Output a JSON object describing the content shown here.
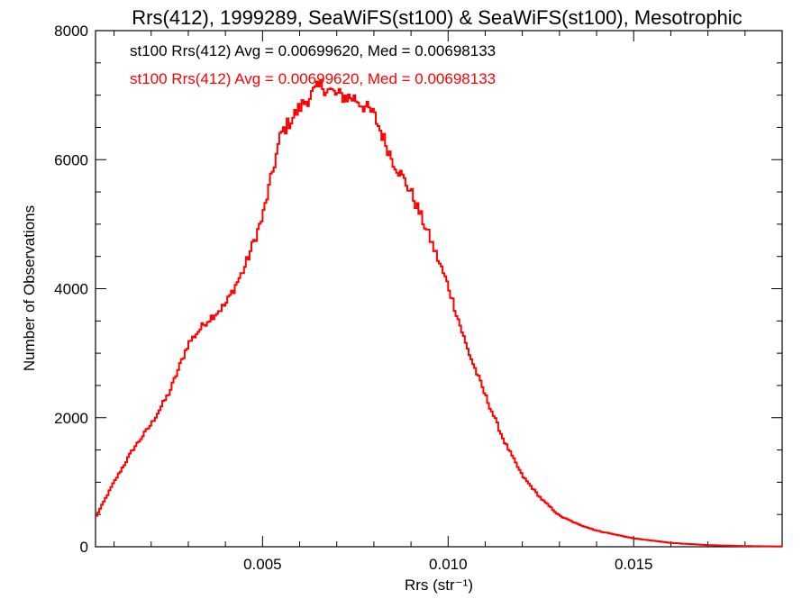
{
  "chart_data": {
    "type": "line",
    "title": "Rrs(412), 1999289, SeaWiFS(st100) & SeaWiFS(st100), Mesotrophic",
    "xlabel": "Rrs (str⁻¹)",
    "ylabel": "Number of Observations",
    "xlim": [
      0.0005,
      0.019
    ],
    "ylim": [
      0,
      8000
    ],
    "x_ticks": [
      0.005,
      0.01,
      0.015
    ],
    "x_tick_labels": [
      "0.005",
      "0.010",
      "0.015"
    ],
    "y_ticks": [
      0,
      2000,
      4000,
      6000,
      8000
    ],
    "y_tick_labels": [
      "0",
      "2000",
      "4000",
      "6000",
      "8000"
    ],
    "grid": false,
    "annotations": [
      {
        "text": "st100 Rrs(412) Avg = 0.00699620, Med = 0.00698133",
        "color": "#000000"
      },
      {
        "text": "st100 Rrs(412) Avg = 0.00699620, Med = 0.00698133",
        "color": "#ff0000"
      }
    ],
    "series": [
      {
        "color": "#ff0000",
        "x": [
          0.0005,
          0.001,
          0.0015,
          0.002,
          0.0025,
          0.003,
          0.0035,
          0.004,
          0.0045,
          0.005,
          0.0055,
          0.006,
          0.0063,
          0.0066,
          0.007,
          0.0075,
          0.008,
          0.0085,
          0.009,
          0.0095,
          0.01,
          0.0105,
          0.011,
          0.0115,
          0.012,
          0.0125,
          0.013,
          0.0135,
          0.014,
          0.015,
          0.016,
          0.017,
          0.018,
          0.019
        ],
        "y": [
          450,
          1000,
          1500,
          1900,
          2400,
          3150,
          3500,
          3750,
          4300,
          5100,
          6400,
          6800,
          7000,
          7150,
          7000,
          6950,
          6700,
          6000,
          5500,
          4800,
          4050,
          3100,
          2350,
          1650,
          1100,
          750,
          480,
          350,
          250,
          130,
          60,
          25,
          10,
          5
        ]
      }
    ]
  }
}
